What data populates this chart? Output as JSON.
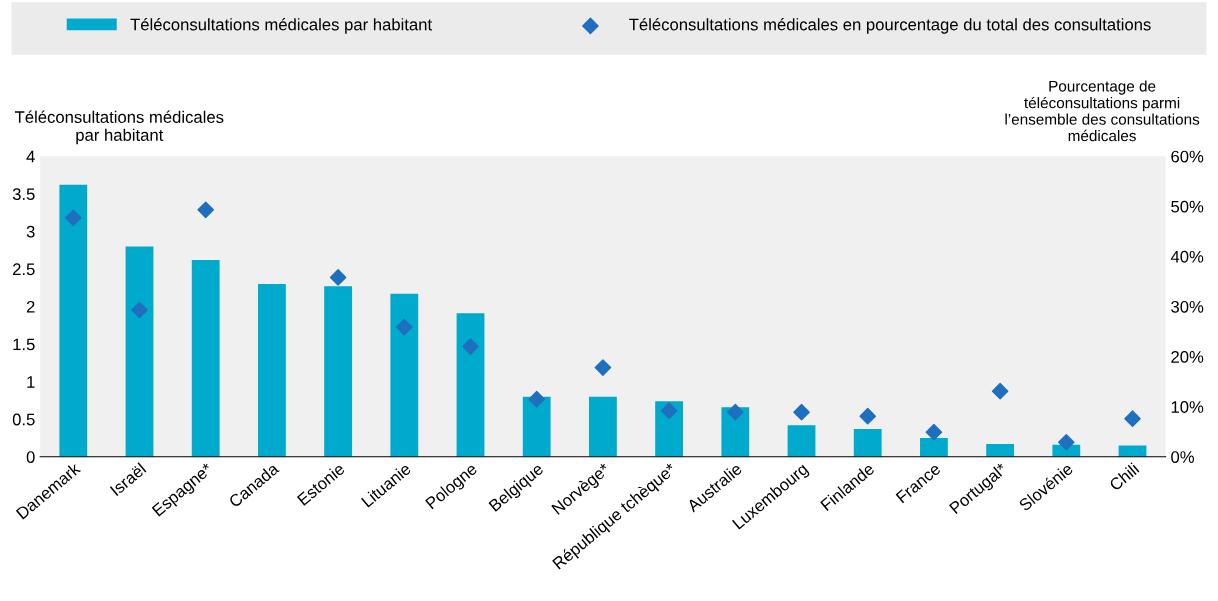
{
  "chart_data": {
    "type": "bar",
    "categories": [
      "Danemark",
      "Israël",
      "Espagne*",
      "Canada",
      "Estonie",
      "Lituanie",
      "Pologne",
      "Belgique",
      "Norvège*",
      "République tchèque*",
      "Australie",
      "Luxembourg",
      "Finlande",
      "France",
      "Portugal*",
      "Slovénie",
      "Chili"
    ],
    "series": [
      {
        "name": "Téléconsultations médicales par habitant",
        "color": "#00aacc",
        "values": [
          3.62,
          2.8,
          2.62,
          2.3,
          2.27,
          2.17,
          1.91,
          0.8,
          0.8,
          0.74,
          0.66,
          0.42,
          0.37,
          0.25,
          0.17,
          0.16,
          0.15
        ]
      },
      {
        "name": "Téléconsultations médicales en pourcentage du total des consultations",
        "type": "scatter",
        "axis": "y2",
        "color": "#1f6fbf",
        "values": [
          47.7,
          29.3,
          49.3,
          null,
          35.8,
          25.9,
          22.0,
          11.5,
          17.8,
          9.2,
          8.9,
          8.9,
          8.1,
          4.9,
          13.1,
          2.9,
          7.6
        ]
      }
    ],
    "ylabel": "Téléconsultations médicales\npar habitant",
    "y2label": "Pourcentage de\ntéléconsultations parmi\nl’ensemble des consultations\nmédicales",
    "ylim": [
      0,
      4
    ],
    "yticks": [
      0,
      0.5,
      1,
      1.5,
      2,
      2.5,
      3,
      3.5,
      4
    ],
    "y2lim": [
      0,
      60
    ],
    "y2ticks": [
      {
        "value": 0,
        "label": "0%"
      },
      {
        "value": 10,
        "label": "10%"
      },
      {
        "value": 20,
        "label": "20%"
      },
      {
        "value": 30,
        "label": "30%"
      },
      {
        "value": 40,
        "label": "40%"
      },
      {
        "value": 50,
        "label": "50%"
      },
      {
        "value": 60,
        "label": "60%"
      }
    ],
    "marker": "diamond",
    "legend": "top",
    "grid": false
  }
}
